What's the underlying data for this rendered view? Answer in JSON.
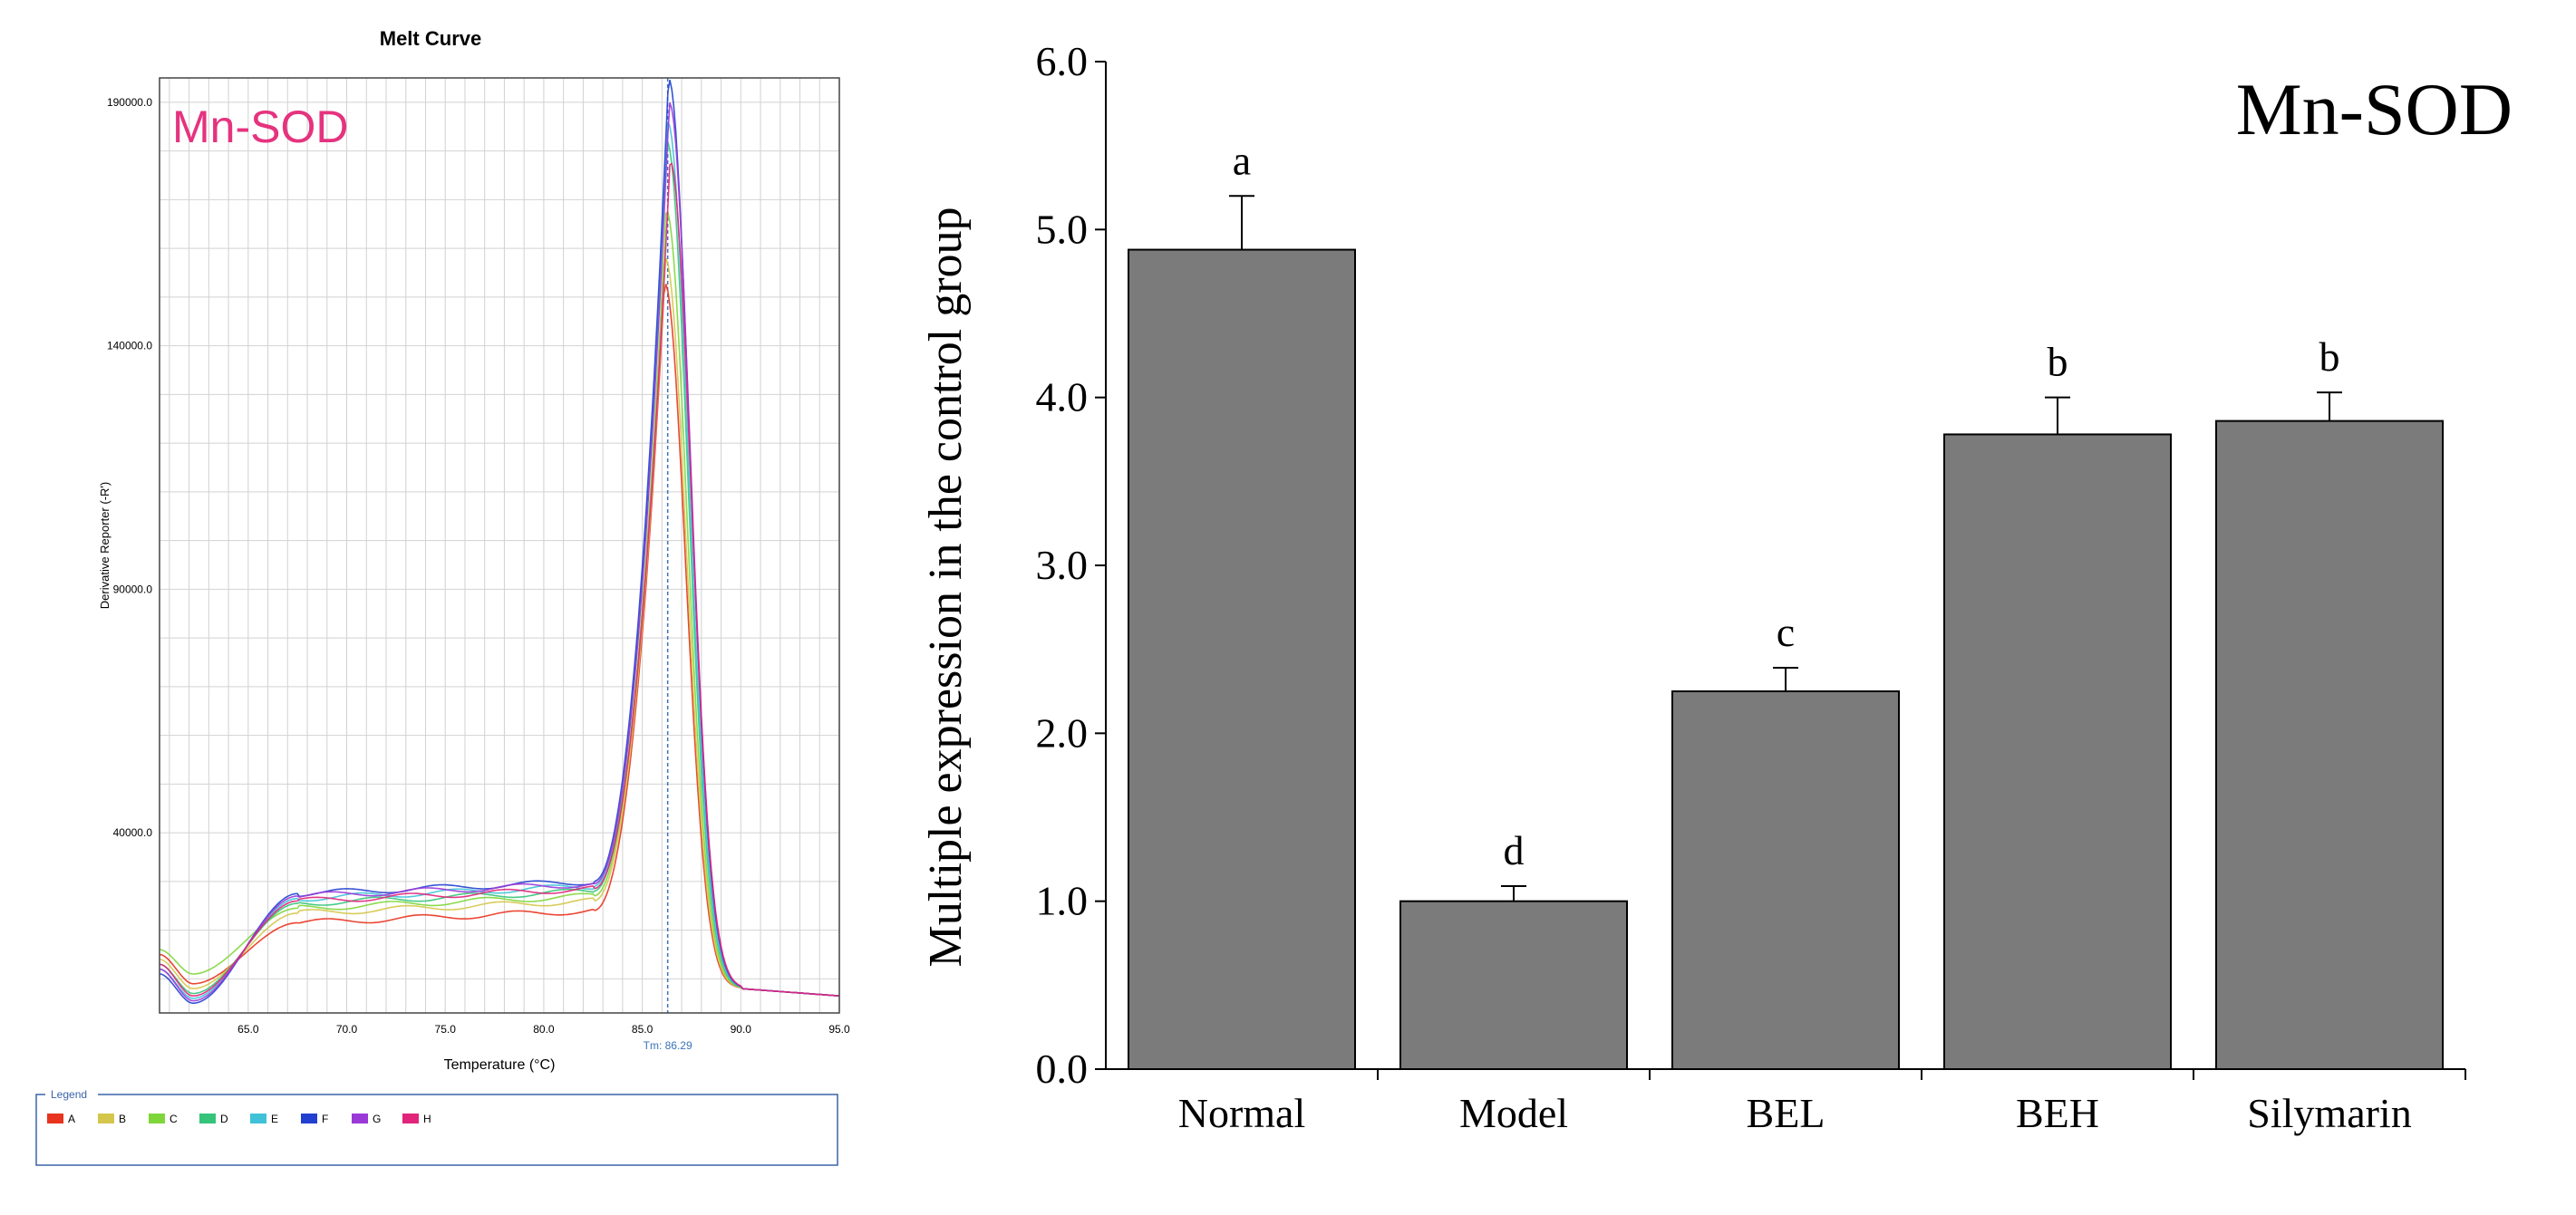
{
  "chart_data": [
    {
      "type": "line",
      "title": "Melt Curve",
      "annotation": "Mn-SOD",
      "xlabel": "Temperature (°C)",
      "ylabel": "Derivative Reporter (-R')",
      "xlim": [
        60.5,
        95.0
      ],
      "ylim": [
        3000,
        195000
      ],
      "xticks": [
        "65.0",
        "70.0",
        "75.0",
        "80.0",
        "85.0",
        "90.0",
        "95.0"
      ],
      "yticks": [
        "40000.0",
        "90000.0",
        "140000.0",
        "190000.0"
      ],
      "tm_label": "Tm: 86.29",
      "tm_value": 86.29,
      "legend_title": "Legend",
      "legend_location": "bottom",
      "series": [
        {
          "name": "A",
          "color": "#e8331e",
          "plateau": 24000,
          "peak": 153000,
          "start": 15000,
          "dip": 9000
        },
        {
          "name": "B",
          "color": "#d4c64a",
          "plateau": 26000,
          "peak": 158000,
          "start": 14000,
          "dip": 8000
        },
        {
          "name": "C",
          "color": "#7fd63a",
          "plateau": 27000,
          "peak": 168000,
          "start": 16000,
          "dip": 11000
        },
        {
          "name": "D",
          "color": "#35c47a",
          "plateau": 28000,
          "peak": 182000,
          "start": 13000,
          "dip": 7000
        },
        {
          "name": "E",
          "color": "#3fc2d8",
          "plateau": 29000,
          "peak": 186000,
          "start": 12000,
          "dip": 6000
        },
        {
          "name": "F",
          "color": "#2140d0",
          "plateau": 30000,
          "peak": 195000,
          "start": 11000,
          "dip": 5000
        },
        {
          "name": "G",
          "color": "#9b38d8",
          "plateau": 29500,
          "peak": 190000,
          "start": 12000,
          "dip": 5500
        },
        {
          "name": "H",
          "color": "#e0257a",
          "plateau": 28500,
          "peak": 178000,
          "start": 13000,
          "dip": 6500
        }
      ]
    },
    {
      "type": "bar",
      "title": "Mn-SOD",
      "xlabel": "",
      "ylabel": "Multiple expression  in the control  group",
      "categories": [
        "Normal",
        "Model",
        "BEL",
        "BEH",
        "Silymarin"
      ],
      "values": [
        4.88,
        1.0,
        2.25,
        3.78,
        3.86
      ],
      "errors": [
        0.32,
        0.09,
        0.14,
        0.22,
        0.17
      ],
      "significance_labels": [
        "a",
        "d",
        "c",
        "b",
        "b"
      ],
      "ylim": [
        0.0,
        6.0
      ],
      "yticks": [
        "0.0",
        "1.0",
        "2.0",
        "3.0",
        "4.0",
        "5.0",
        "6.0"
      ],
      "bar_color": "#7b7b7b"
    }
  ]
}
